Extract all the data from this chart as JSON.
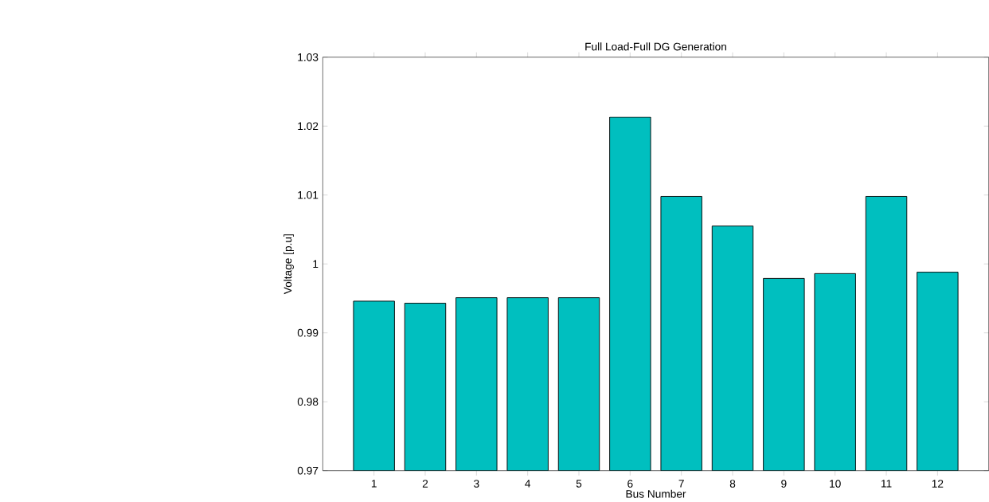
{
  "chart_data": {
    "type": "bar",
    "title": "Full Load-Full DG Generation",
    "xlabel": "Bus Number",
    "ylabel": "Voltage [p.u]",
    "categories": [
      "1",
      "2",
      "3",
      "4",
      "5",
      "6",
      "7",
      "8",
      "9",
      "10",
      "11",
      "12"
    ],
    "values": [
      0.9946,
      0.9943,
      0.9951,
      0.9951,
      0.9951,
      1.0213,
      1.0098,
      1.0055,
      0.9979,
      0.9986,
      1.0098,
      0.9988
    ],
    "color": "#00bfbf",
    "ylim": [
      0.97,
      1.03
    ],
    "yticks": [
      0.97,
      0.98,
      0.99,
      1,
      1.01,
      1.02,
      1.03
    ],
    "grid": false
  }
}
